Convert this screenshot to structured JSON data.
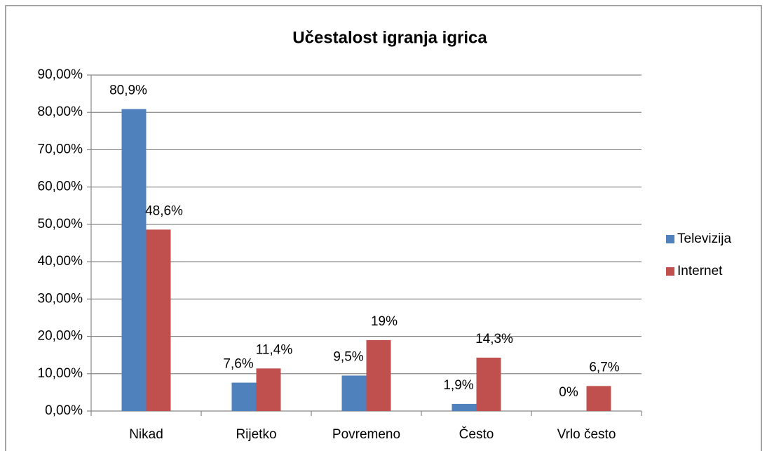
{
  "chart_data": {
    "type": "bar",
    "title": "Učestalost igranja igrica",
    "categories": [
      "Nikad",
      "Rijetko",
      "Povremeno",
      "Često",
      "Vrlo često"
    ],
    "series": [
      {
        "name": "Televizija",
        "color": "#4f81bd",
        "values": [
          80.9,
          7.6,
          9.5,
          1.9,
          0
        ],
        "value_labels": [
          "80,9%",
          "7,6%",
          "9,5%",
          "1,9%",
          "0%"
        ]
      },
      {
        "name": "Internet",
        "color": "#c0504d",
        "values": [
          48.6,
          11.4,
          19,
          14.3,
          6.7
        ],
        "value_labels": [
          "48,6%",
          "11,4%",
          "19%",
          "14,3%",
          "6,7%"
        ]
      }
    ],
    "ylim": [
      0,
      90
    ],
    "yticks": [
      {
        "value": 0,
        "label": "0,00%"
      },
      {
        "value": 10,
        "label": "10,00%"
      },
      {
        "value": 20,
        "label": "20,00%"
      },
      {
        "value": 30,
        "label": "30,00%"
      },
      {
        "value": 40,
        "label": "40,00%"
      },
      {
        "value": 50,
        "label": "50,00%"
      },
      {
        "value": 60,
        "label": "60,00%"
      },
      {
        "value": 70,
        "label": "70,00%"
      },
      {
        "value": 80,
        "label": "80,00%"
      },
      {
        "value": 90,
        "label": "90,00%"
      }
    ],
    "grid": true,
    "legend": "right"
  }
}
